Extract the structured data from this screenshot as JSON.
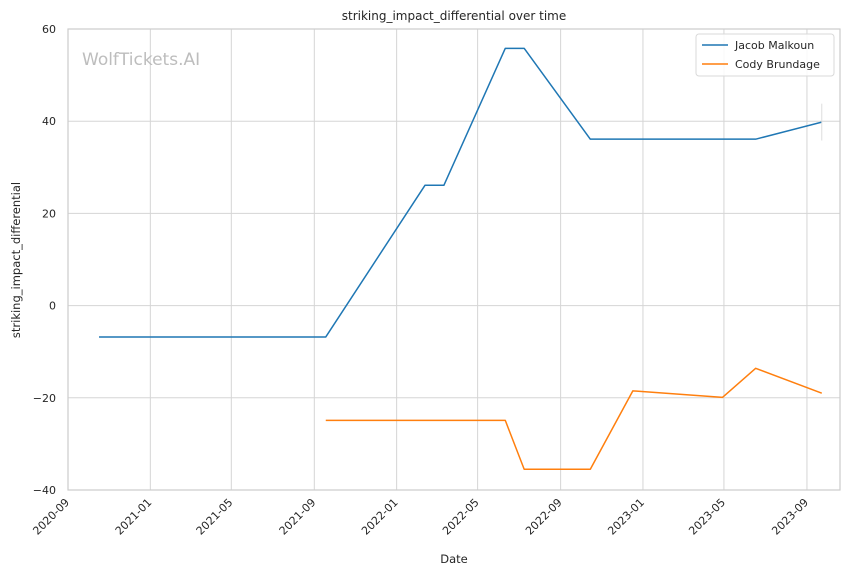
{
  "watermark": "WolfTickets.AI",
  "chart_data": {
    "type": "line",
    "title": "striking_impact_differential over time",
    "xlabel": "Date",
    "ylabel": "striking_impact_differential",
    "x_type": "date",
    "xlim": [
      "2020-09-01",
      "2023-10-20"
    ],
    "ylim": [
      -40,
      60
    ],
    "x_ticks": [
      "2020-09",
      "2021-01",
      "2021-05",
      "2021-09",
      "2022-01",
      "2022-05",
      "2022-09",
      "2023-01",
      "2023-05",
      "2023-09"
    ],
    "y_ticks": [
      -40,
      -20,
      0,
      20,
      40,
      60
    ],
    "y_tick_labels": [
      "−40",
      "−20",
      "0",
      "20",
      "40",
      "60"
    ],
    "grid": true,
    "legend_position": "top-right",
    "series": [
      {
        "name": "Jacob Malkoun",
        "color": "#1f77b4",
        "points": [
          {
            "x": "2020-10-17",
            "y": -6.8
          },
          {
            "x": "2021-09-18",
            "y": -6.8
          },
          {
            "x": "2022-02-12",
            "y": 26.1
          },
          {
            "x": "2022-03-12",
            "y": 26.1
          },
          {
            "x": "2022-06-11",
            "y": 55.8
          },
          {
            "x": "2022-07-09",
            "y": 55.8
          },
          {
            "x": "2022-10-15",
            "y": 36.1
          },
          {
            "x": "2023-06-17",
            "y": 36.1
          },
          {
            "x": "2023-09-23",
            "y": 39.8
          }
        ]
      },
      {
        "name": "Cody Brundage",
        "color": "#ff7f0e",
        "points": [
          {
            "x": "2021-09-18",
            "y": -24.9
          },
          {
            "x": "2022-06-11",
            "y": -24.9
          },
          {
            "x": "2022-07-09",
            "y": -35.5
          },
          {
            "x": "2022-10-15",
            "y": -35.5
          },
          {
            "x": "2022-12-17",
            "y": -18.5
          },
          {
            "x": "2023-04-29",
            "y": -19.9
          },
          {
            "x": "2023-06-17",
            "y": -13.6
          },
          {
            "x": "2023-09-23",
            "y": -19.0
          }
        ]
      }
    ]
  }
}
